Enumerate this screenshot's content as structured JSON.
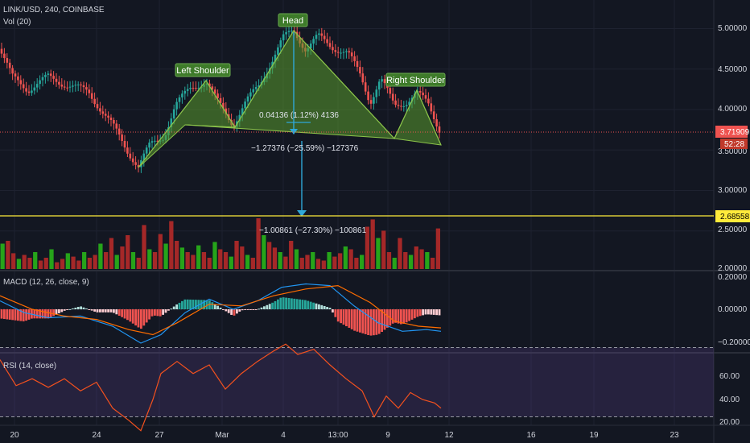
{
  "header": {
    "symbol_line": "LINK/USD, 240, COINBASE",
    "volume_label": "Vol (20)",
    "macd_label": "MACD (12, 26, close, 9)",
    "rsi_label": "RSI (14, close)"
  },
  "annotations": {
    "head": "Head",
    "left_shoulder": "Left Shoulder",
    "right_shoulder": "Right Shoulder",
    "measure_upper": "0.04136 (1.12%) 4136",
    "measure_lower": "−1.27376 (−25.59%) −127376",
    "measure_target": "−1.00861 (−27.30%) −100861"
  },
  "price_axis": {
    "ticks": [
      "5.00000",
      "4.50000",
      "4.00000",
      "3.50000",
      "3.00000",
      "2.50000",
      "2.00000"
    ],
    "current_price": "3.71909",
    "countdown": "52:28",
    "target_price": "2.68558"
  },
  "macd_axis": {
    "ticks": [
      "0.20000",
      "0.00000",
      "−0.20000"
    ]
  },
  "rsi_axis": {
    "ticks": [
      "60.00",
      "40.00",
      "20.00"
    ]
  },
  "time_axis": {
    "ticks": [
      "20",
      "24",
      "27",
      "Mar",
      "4",
      "13:00",
      "9",
      "12",
      "16",
      "19",
      "23"
    ]
  },
  "colors": {
    "background": "#131722",
    "up": "#26a69a",
    "down": "#ef5350",
    "vol_up": "#26a41a",
    "vol_down": "#a52828",
    "pattern_fill": "#5a9a2e",
    "pattern_stroke": "#8bc34a",
    "measure": "#2fa8d8",
    "macd_line": "#2196f3",
    "signal_line": "#ff6d00",
    "rsi_line": "#f4511e",
    "rsi_band": "#7e57c2",
    "target_line": "#ffeb3b",
    "current_line": "#ef5350"
  },
  "chart_data": {
    "type": "candlestick",
    "symbol": "LINK/USD",
    "interval": "240",
    "exchange": "COINBASE",
    "price_range": [
      2.0,
      5.3
    ],
    "key_points": [
      {
        "label": "Left Shoulder",
        "price": 4.35
      },
      {
        "label": "Head",
        "price": 5.0
      },
      {
        "label": "Right Shoulder",
        "price": 4.22
      },
      {
        "label": "neckline",
        "price": 3.72
      },
      {
        "label": "target",
        "price": 2.68558
      }
    ],
    "price_path": [
      [
        0,
        4.75
      ],
      [
        15,
        4.4
      ],
      [
        35,
        4.25
      ],
      [
        60,
        4.4
      ],
      [
        85,
        4.3
      ],
      [
        110,
        4.22
      ],
      [
        140,
        3.8
      ],
      [
        158,
        3.5
      ],
      [
        172,
        3.3
      ],
      [
        186,
        3.55
      ],
      [
        204,
        3.68
      ],
      [
        218,
        4.05
      ],
      [
        238,
        4.28
      ],
      [
        256,
        4.35
      ],
      [
        270,
        4.1
      ],
      [
        290,
        3.82
      ],
      [
        305,
        4.08
      ],
      [
        322,
        4.3
      ],
      [
        340,
        4.65
      ],
      [
        352,
        4.88
      ],
      [
        365,
        4.98
      ],
      [
        380,
        4.75
      ],
      [
        395,
        4.9
      ],
      [
        412,
        4.78
      ],
      [
        432,
        4.7
      ],
      [
        448,
        4.42
      ],
      [
        460,
        4.1
      ],
      [
        473,
        4.38
      ],
      [
        490,
        4.05
      ],
      [
        505,
        4.1
      ],
      [
        518,
        4.2
      ],
      [
        532,
        4.07
      ],
      [
        548,
        3.72
      ]
    ],
    "volume": [
      0.45,
      0.5,
      0.28,
      0.18,
      0.25,
      0.2,
      0.3,
      0.15,
      0.2,
      0.35,
      0.12,
      0.18,
      0.28,
      0.22,
      0.15,
      0.3,
      0.2,
      0.25,
      0.45,
      0.3,
      0.55,
      0.25,
      0.4,
      0.6,
      0.3,
      0.2,
      0.78,
      0.35,
      0.3,
      0.62,
      0.45,
      0.85,
      0.5,
      0.38,
      0.3,
      0.25,
      0.42,
      0.3,
      0.2,
      0.48,
      0.35,
      0.3,
      0.22,
      0.5,
      0.4,
      0.25,
      0.2,
      0.9,
      0.6,
      0.48,
      0.38,
      0.3,
      0.22,
      0.5,
      0.35,
      0.2,
      0.25,
      0.3,
      0.18,
      0.15,
      0.3,
      0.22,
      0.28,
      0.4,
      0.35,
      0.2,
      0.25,
      0.75,
      0.88,
      0.55,
      0.68,
      0.3,
      0.2,
      0.55,
      0.3,
      0.25,
      0.4,
      0.35,
      0.3,
      0.2,
      0.72
    ],
    "macd": [
      [
        0,
        0.05
      ],
      [
        30,
        -0.02
      ],
      [
        60,
        -0.05
      ],
      [
        100,
        -0.04
      ],
      [
        140,
        -0.1
      ],
      [
        175,
        -0.2
      ],
      [
        200,
        -0.15
      ],
      [
        230,
        -0.02
      ],
      [
        260,
        0.06
      ],
      [
        290,
        0.0
      ],
      [
        320,
        0.05
      ],
      [
        350,
        0.13
      ],
      [
        380,
        0.15
      ],
      [
        410,
        0.14
      ],
      [
        440,
        0.02
      ],
      [
        470,
        -0.08
      ],
      [
        500,
        -0.13
      ],
      [
        530,
        -0.12
      ],
      [
        548,
        -0.13
      ]
    ],
    "macd_signal": [
      [
        0,
        0.08
      ],
      [
        40,
        0.0
      ],
      [
        80,
        -0.04
      ],
      [
        120,
        -0.06
      ],
      [
        160,
        -0.12
      ],
      [
        190,
        -0.15
      ],
      [
        220,
        -0.08
      ],
      [
        260,
        0.03
      ],
      [
        300,
        0.02
      ],
      [
        340,
        0.08
      ],
      [
        380,
        0.12
      ],
      [
        420,
        0.14
      ],
      [
        460,
        0.04
      ],
      [
        490,
        -0.07
      ],
      [
        520,
        -0.1
      ],
      [
        548,
        -0.11
      ]
    ],
    "rsi": [
      [
        0,
        63
      ],
      [
        20,
        48
      ],
      [
        40,
        52
      ],
      [
        60,
        47
      ],
      [
        80,
        52
      ],
      [
        100,
        45
      ],
      [
        120,
        50
      ],
      [
        140,
        35
      ],
      [
        160,
        28
      ],
      [
        175,
        22
      ],
      [
        190,
        40
      ],
      [
        200,
        55
      ],
      [
        220,
        62
      ],
      [
        240,
        55
      ],
      [
        260,
        60
      ],
      [
        280,
        46
      ],
      [
        300,
        55
      ],
      [
        320,
        62
      ],
      [
        340,
        68
      ],
      [
        355,
        72
      ],
      [
        370,
        66
      ],
      [
        390,
        69
      ],
      [
        410,
        60
      ],
      [
        430,
        52
      ],
      [
        450,
        45
      ],
      [
        465,
        30
      ],
      [
        480,
        42
      ],
      [
        495,
        35
      ],
      [
        510,
        44
      ],
      [
        525,
        40
      ],
      [
        540,
        38
      ],
      [
        548,
        35
      ]
    ],
    "rsi_levels": [
      70,
      30
    ]
  }
}
